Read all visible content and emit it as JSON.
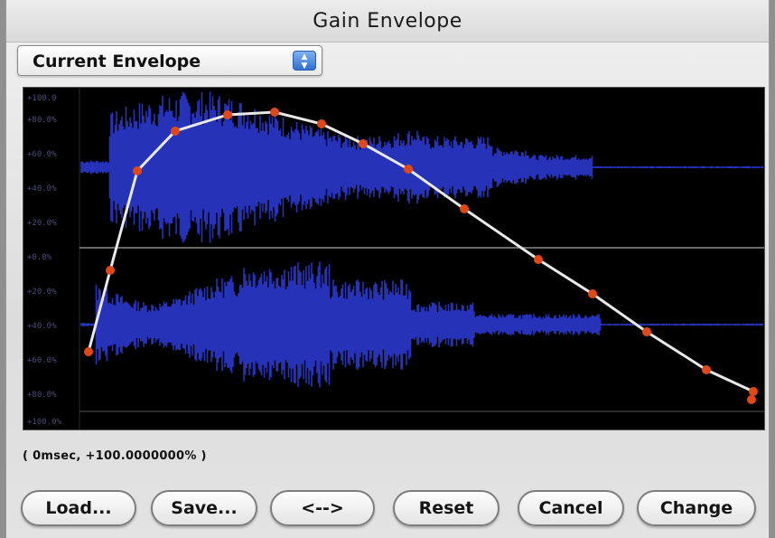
{
  "window": {
    "title": "Gain Envelope"
  },
  "envelope_selector": {
    "selected": "Current Envelope",
    "arrows_icon": "updown-arrows-icon"
  },
  "graph": {
    "y_ticks_top": [
      "+100.0",
      "+80.0%",
      "+60.0%",
      "+40.0%",
      "+20.0%"
    ],
    "y_ticks_bottom": [
      "+0.0%",
      "+20.0%",
      "+40.0%",
      "+60.0%",
      "+80.0%",
      "+100.0%"
    ],
    "waveform_color": "#2633b8",
    "envelope_line_color": "#e8e8e8",
    "point_color": "#e0481a"
  },
  "status": {
    "text": "(   0msec, +100.0000000% )"
  },
  "buttons": {
    "load": "Load...",
    "save": "Save...",
    "swap": "<-->",
    "reset": "Reset",
    "cancel": "Cancel",
    "change": "Change"
  }
}
